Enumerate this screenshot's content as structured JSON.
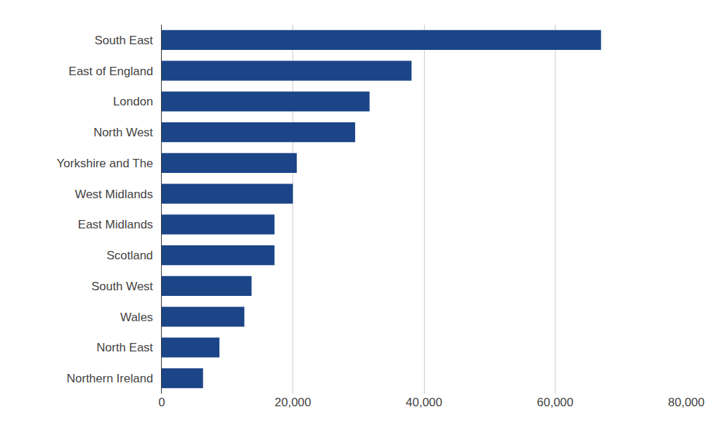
{
  "chart_data": {
    "type": "bar",
    "orientation": "horizontal",
    "categories": [
      "South East",
      "East of England",
      "London",
      "North West",
      "Yorkshire and The",
      "West Midlands",
      "East Midlands",
      "Scotland",
      "South West",
      "Wales",
      "North East",
      "Northern Ireland"
    ],
    "values": [
      67000,
      38100,
      31700,
      29500,
      20600,
      20000,
      17200,
      17200,
      13700,
      12600,
      8800,
      6300
    ],
    "color": "#1c4587",
    "xlim": [
      0,
      80000
    ],
    "xticks": [
      0,
      {
        "value": 20000,
        "label": "20,000"
      },
      {
        "value": 40000,
        "label": "40,000"
      },
      {
        "value": 60000,
        "label": "60,000"
      },
      {
        "value": 80000,
        "label": "80,000"
      }
    ],
    "grid": true
  }
}
